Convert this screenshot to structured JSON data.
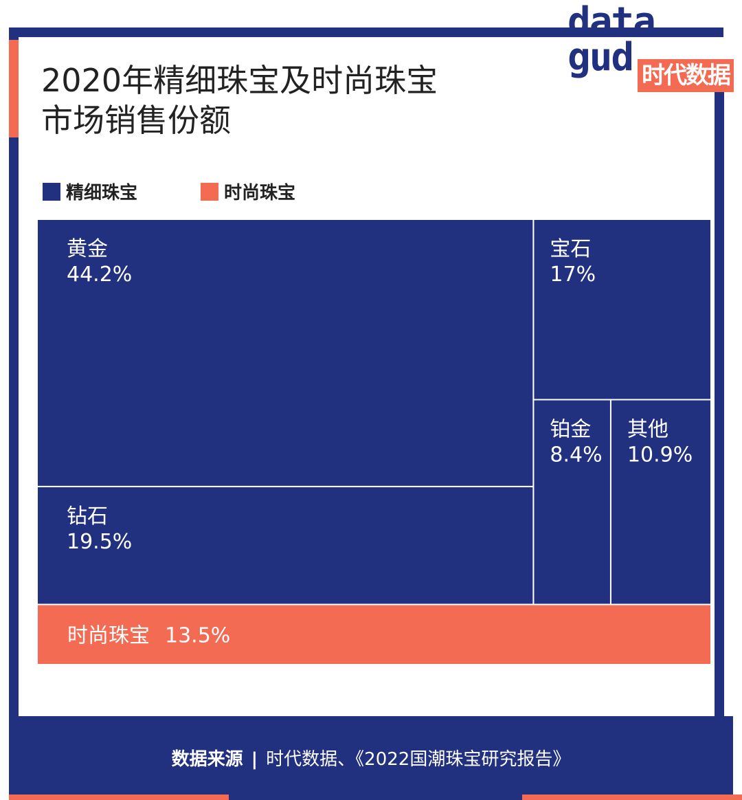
{
  "header": {
    "title_line1": "2020年精细珠宝及时尚珠宝",
    "title_line2": "市场销售份额"
  },
  "logo": {
    "word_line1": "data",
    "word_line2": "gud",
    "badge": "时代数据"
  },
  "colors": {
    "fine": "#22317f",
    "fashion": "#f26b52",
    "background": "#ffffff"
  },
  "chart_data": {
    "type": "treemap",
    "title": "2020年精细珠宝及时尚珠宝市场销售份额",
    "unit": "%",
    "legend": [
      {
        "name": "精细珠宝",
        "color": "#22317f"
      },
      {
        "name": "时尚珠宝",
        "color": "#f26b52"
      }
    ],
    "items": [
      {
        "id": "gold",
        "category": "精细珠宝",
        "name": "黄金",
        "value": 44.2,
        "label": "44.2%"
      },
      {
        "id": "diamond",
        "category": "精细珠宝",
        "name": "钻石",
        "value": 19.5,
        "label": "19.5%"
      },
      {
        "id": "gemstone",
        "category": "精细珠宝",
        "name": "宝石",
        "value": 17,
        "label": "17%"
      },
      {
        "id": "platinum",
        "category": "精细珠宝",
        "name": "铂金",
        "value": 8.4,
        "label": "8.4%"
      },
      {
        "id": "other",
        "category": "精细珠宝",
        "name": "其他",
        "value": 10.9,
        "label": "10.9%"
      },
      {
        "id": "fashion",
        "category": "时尚珠宝",
        "name": "时尚珠宝",
        "value": 13.5,
        "label": "13.5%"
      }
    ]
  },
  "footer": {
    "source_label": "数据来源",
    "separator": "|",
    "source_text": "时代数据、《2022国潮珠宝研究报告》"
  }
}
